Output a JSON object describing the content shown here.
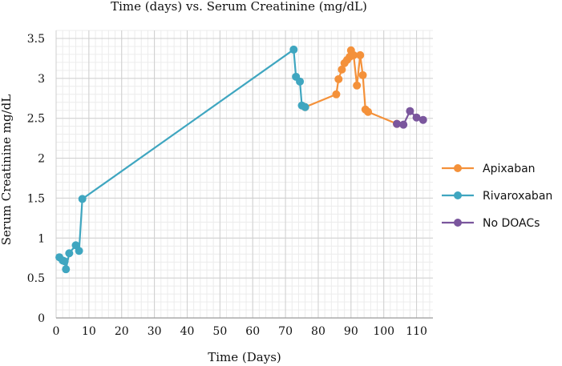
{
  "chart_data": {
    "type": "line",
    "title": "Time (days) vs. Serum Creatinine (mg/dL)",
    "xlabel": "Time (Days)",
    "ylabel": "Serum Creatinine mg/dL",
    "xlim": [
      0,
      115
    ],
    "ylim": [
      0,
      3.6
    ],
    "x_ticks": [
      0,
      10,
      20,
      30,
      40,
      50,
      60,
      70,
      80,
      90,
      100,
      110
    ],
    "y_ticks": [
      0,
      0.5,
      1,
      1.5,
      2,
      2.5,
      3,
      3.5
    ],
    "x_tick_labels": [
      "0",
      "10",
      "20",
      "30",
      "40",
      "50",
      "60",
      "70",
      "80",
      "90",
      "100",
      "110"
    ],
    "y_tick_labels": [
      "0",
      "0.5",
      "1",
      "1.5",
      "2",
      "2.5",
      "3",
      "3.5"
    ],
    "grid": true,
    "legend_position": "right",
    "series": [
      {
        "name": "Apixaban",
        "color": "#f4913a",
        "points": [
          [
            76,
            2.64
          ],
          [
            85.5,
            2.8
          ],
          [
            86.2,
            2.99
          ],
          [
            87.2,
            3.11
          ],
          [
            88,
            3.19
          ],
          [
            88.8,
            3.23
          ],
          [
            89.6,
            3.27
          ],
          [
            90,
            3.35
          ],
          [
            90.8,
            3.29
          ],
          [
            91.8,
            2.91
          ],
          [
            92.8,
            3.29
          ],
          [
            93.6,
            3.04
          ],
          [
            94.4,
            2.61
          ],
          [
            95.2,
            2.58
          ],
          [
            104,
            2.43
          ]
        ]
      },
      {
        "name": "Rivaroxaban",
        "color": "#3fa6c0",
        "points": [
          [
            1,
            0.76
          ],
          [
            2,
            0.72
          ],
          [
            2.6,
            0.71
          ],
          [
            3,
            0.61
          ],
          [
            4,
            0.81
          ],
          [
            6,
            0.91
          ],
          [
            7,
            0.84
          ],
          [
            8,
            1.49
          ],
          [
            72.5,
            3.36
          ],
          [
            73.2,
            3.02
          ],
          [
            74.4,
            2.96
          ],
          [
            75,
            2.66
          ],
          [
            76,
            2.64
          ]
        ]
      },
      {
        "name": "No DOACs",
        "color": "#7a569d",
        "points": [
          [
            104,
            2.43
          ],
          [
            106,
            2.42
          ],
          [
            108,
            2.59
          ],
          [
            110,
            2.51
          ],
          [
            112,
            2.48
          ]
        ]
      }
    ]
  }
}
